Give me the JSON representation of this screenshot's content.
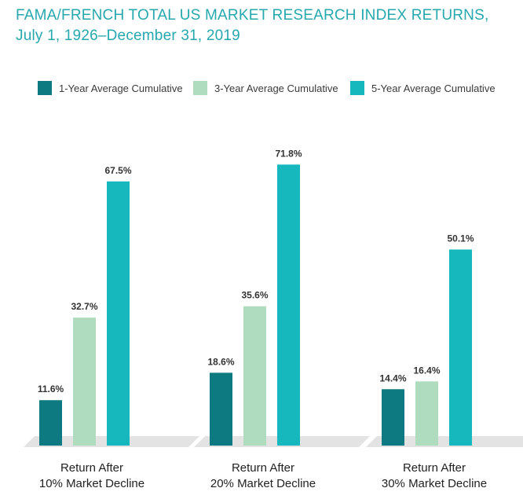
{
  "chart_data": {
    "type": "bar",
    "title": "FAMA/FRENCH TOTAL US MARKET RESEARCH INDEX RETURNS,",
    "subtitle": "July 1, 1926–December 31, 2019",
    "categories": [
      [
        "Return After",
        "10% Market Decline"
      ],
      [
        "Return After",
        "20% Market Decline"
      ],
      [
        "Return After",
        "30% Market Decline"
      ]
    ],
    "series": [
      {
        "name": "1-Year Average Cumulative",
        "values": [
          11.6,
          18.6,
          14.4
        ],
        "labels": [
          "11.6%",
          "18.6%",
          "14.4%"
        ],
        "color": "#0c7a80"
      },
      {
        "name": "3-Year Average Cumulative",
        "values": [
          32.7,
          35.6,
          16.4
        ],
        "labels": [
          "32.7%",
          "35.6%",
          "16.4%"
        ],
        "color": "#afdcbf"
      },
      {
        "name": "5-Year Average Cumulative",
        "values": [
          67.5,
          71.8,
          50.1
        ],
        "labels": [
          "67.5%",
          "71.8%",
          "50.1%"
        ],
        "color": "#16b8be"
      }
    ],
    "ylim": [
      0,
      80
    ],
    "legend_position": "top",
    "grid": false
  },
  "colors": {
    "title": "#26a8ae",
    "floor": "#e3e3e3"
  }
}
